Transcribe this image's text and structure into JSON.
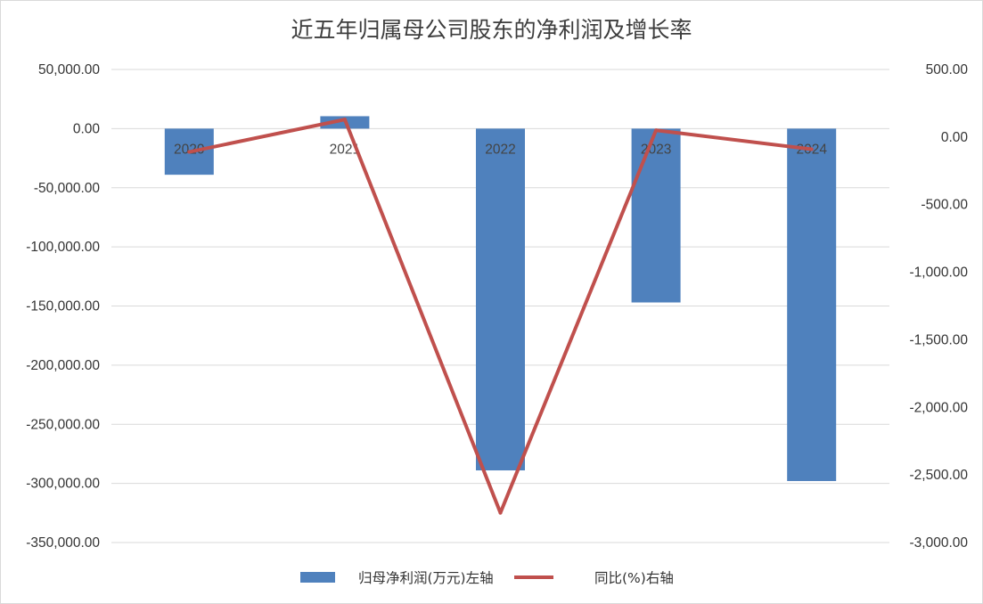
{
  "chart_data": {
    "type": "bar",
    "title": "近五年归属母公司股东的净利润及增长率",
    "categories": [
      "2020",
      "2021",
      "2022",
      "2023",
      "2024"
    ],
    "series": [
      {
        "name": "归母净利润(万元)左轴",
        "type": "bar",
        "axis": "left",
        "color": "#4f81bd",
        "values": [
          -39000,
          10500,
          -289000,
          -147000,
          -298000
        ]
      },
      {
        "name": "同比(%)右轴",
        "type": "line",
        "axis": "right",
        "color": "#c0504d",
        "values": [
          -110,
          130,
          -2780,
          50,
          -90
        ]
      }
    ],
    "left_axis": {
      "ylim": [
        -350000,
        50000
      ],
      "ticks": [
        "50,000.00",
        "0.00",
        "-50,000.00",
        "-100,000.00",
        "-150,000.00",
        "-200,000.00",
        "-250,000.00",
        "-300,000.00",
        "-350,000.00"
      ]
    },
    "right_axis": {
      "ylim": [
        -3000,
        500
      ],
      "ticks": [
        "500.00",
        "0.00",
        "-500.00",
        "-1,000.00",
        "-1,500.00",
        "-2,000.00",
        "-2,500.00",
        "-3,000.00"
      ]
    },
    "grid": true,
    "legend_position": "bottom"
  }
}
